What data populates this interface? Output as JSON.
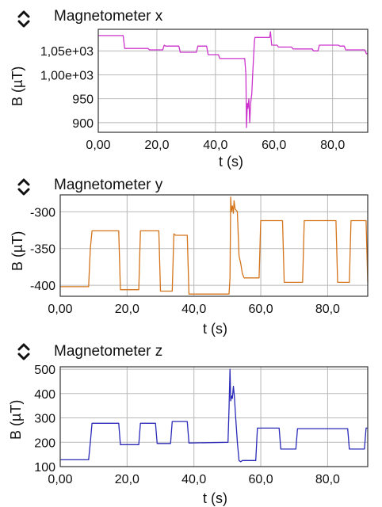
{
  "charts": [
    {
      "title": "Magnetometer x",
      "ylabel": "B (µT)",
      "xlabel": "t (s)",
      "color": "#cc33cc",
      "xlim": [
        0,
        92
      ],
      "ylim": [
        880,
        1095
      ],
      "xticks": [
        0,
        20,
        40,
        60,
        80
      ],
      "xtick_labels": [
        "0,00",
        "20,0",
        "40,0",
        "60,0",
        "80,0"
      ],
      "yticks": [
        900,
        950,
        1000,
        1050
      ],
      "ytick_labels": [
        "900",
        "950",
        "1,00e+03",
        "1,05e+03"
      ],
      "series": [
        {
          "x": [
            0,
            7,
            8.5,
            9,
            17,
            17.5,
            22,
            22.5,
            23,
            27.5,
            28,
            33,
            33.5,
            34,
            37,
            37.5,
            41,
            41.5,
            50,
            50.4,
            50.6,
            50.9,
            51.1,
            51.4,
            51.7,
            52.0,
            52.4,
            52.7,
            53.3,
            53.5,
            54.0,
            58.5,
            58.8,
            59.2,
            61,
            61.5,
            66,
            66.5,
            67,
            73,
            73.5,
            75,
            75.5,
            82,
            82.5,
            84,
            84.5,
            91,
            91.5,
            92
          ],
          "y": [
            1082,
            1082,
            1082,
            1055,
            1055,
            1052,
            1052,
            1062,
            1060,
            1060,
            1047,
            1047,
            1047,
            1060,
            1060,
            1042,
            1042,
            1034,
            1034,
            1000,
            890,
            940,
            930,
            950,
            900,
            940,
            960,
            1000,
            1070,
            1078,
            1078,
            1078,
            1090,
            1062,
            1062,
            1058,
            1058,
            1054,
            1054,
            1054,
            1050,
            1050,
            1062,
            1062,
            1060,
            1060,
            1052,
            1052,
            1044,
            1044
          ]
        }
      ]
    },
    {
      "title": "Magnetometer y",
      "ylabel": "B (µT)",
      "xlabel": "t (s)",
      "color": "#d4741a",
      "xlim": [
        0,
        92
      ],
      "ylim": [
        -415,
        -277
      ],
      "xticks": [
        0,
        20,
        40,
        60,
        80
      ],
      "xtick_labels": [
        "0,00",
        "20,0",
        "40,0",
        "60,0",
        "80,0"
      ],
      "yticks": [
        -400,
        -350,
        -300
      ],
      "ytick_labels": [
        "-400",
        "-350",
        "-300"
      ],
      "series": [
        {
          "x": [
            0,
            8.5,
            9,
            9.5,
            17,
            17.5,
            18,
            23,
            23.5,
            24,
            29,
            29.5,
            30,
            33.5,
            34,
            34.5,
            37.5,
            38,
            38.5,
            50.5,
            50.8,
            51.0,
            51.2,
            51.5,
            51.8,
            52.0,
            52.3,
            53.0,
            53.5,
            54,
            54.5,
            55,
            59,
            59.5,
            60,
            66,
            66.5,
            67,
            72,
            72.5,
            73,
            82,
            82.5,
            83,
            86,
            86.5,
            87,
            91,
            91.5,
            92
          ],
          "y": [
            -402,
            -402,
            -350,
            -326,
            -326,
            -326,
            -406,
            -406,
            -406,
            -326,
            -326,
            -326,
            -408,
            -408,
            -330,
            -332,
            -332,
            -332,
            -412,
            -412,
            -390,
            -280,
            -300,
            -292,
            -302,
            -285,
            -296,
            -300,
            -360,
            -370,
            -384,
            -390,
            -390,
            -390,
            -312,
            -312,
            -312,
            -396,
            -396,
            -396,
            -312,
            -312,
            -312,
            -396,
            -396,
            -396,
            -312,
            -312,
            -312,
            -396
          ]
        }
      ]
    },
    {
      "title": "Magnetometer z",
      "ylabel": "B (µT)",
      "xlabel": "t (s)",
      "color": "#2a2ab8",
      "xlim": [
        0,
        92
      ],
      "ylim": [
        100,
        510
      ],
      "xticks": [
        0,
        20,
        40,
        60,
        80
      ],
      "xtick_labels": [
        "0,00",
        "20,0",
        "40,0",
        "60,0",
        "80,0"
      ],
      "yticks": [
        100,
        200,
        300,
        400,
        500
      ],
      "ytick_labels": [
        "100",
        "200",
        "300",
        "400",
        "500"
      ],
      "series": [
        {
          "x": [
            0,
            8.5,
            9,
            9.5,
            17,
            17.5,
            18,
            23,
            23.5,
            24,
            28,
            28.5,
            29,
            33,
            33.5,
            34,
            37.5,
            38,
            38.5,
            50.2,
            50.5,
            50.8,
            51.0,
            51.3,
            51.5,
            51.8,
            52.1,
            52.5,
            53.0,
            53.5,
            54,
            54.5,
            58,
            58.5,
            59,
            65,
            65.5,
            66,
            70,
            70.5,
            71,
            79,
            79.5,
            80,
            86,
            86.5,
            87,
            91,
            91.5,
            92
          ],
          "y": [
            128,
            128,
            200,
            278,
            278,
            278,
            190,
            190,
            190,
            278,
            278,
            278,
            195,
            195,
            285,
            285,
            285,
            285,
            197,
            200,
            340,
            500,
            370,
            390,
            380,
            430,
            390,
            300,
            200,
            125,
            120,
            125,
            125,
            125,
            258,
            258,
            258,
            172,
            172,
            172,
            256,
            256,
            256,
            256,
            256,
            172,
            172,
            172,
            258,
            258
          ]
        }
      ]
    }
  ]
}
